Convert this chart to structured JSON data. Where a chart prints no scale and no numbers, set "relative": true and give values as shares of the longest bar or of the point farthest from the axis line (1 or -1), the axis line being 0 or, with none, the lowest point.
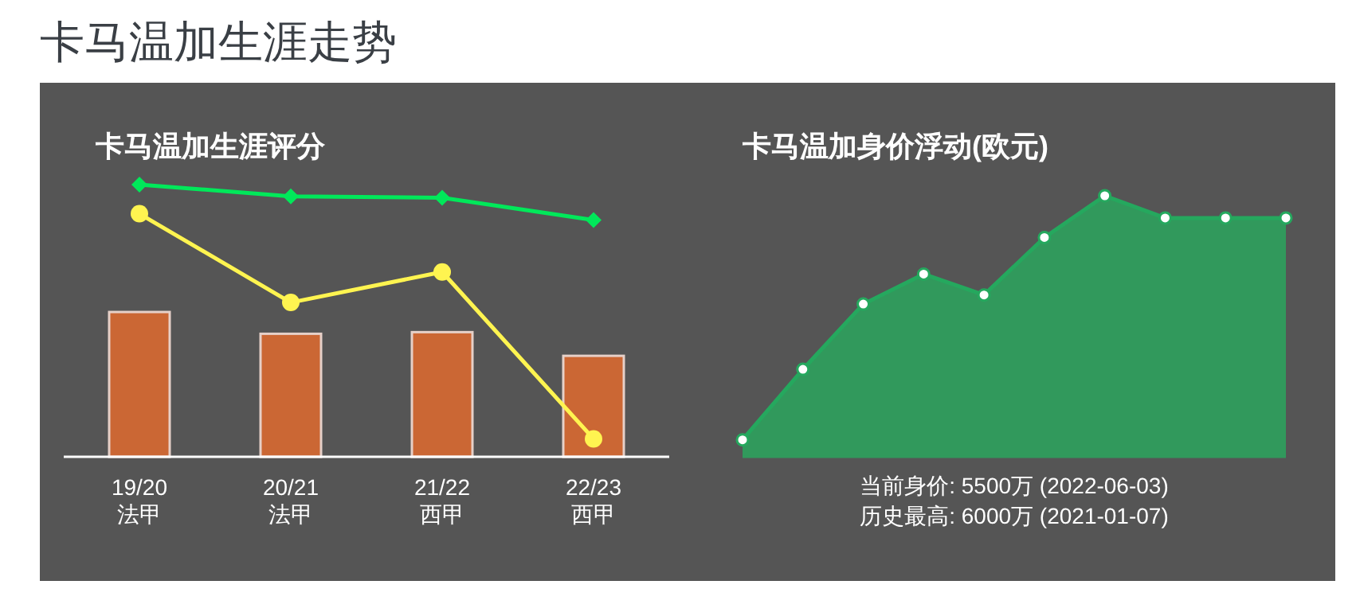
{
  "chart_data": [
    {
      "type": "bar",
      "title": "卡马温加生涯走势",
      "subtitle": "卡马温加生涯评分",
      "relative": true,
      "categories": [
        "19/20\n法甲",
        "20/21\n法甲",
        "21/22\n西甲",
        "22/23\n西甲"
      ],
      "series": [
        {
          "type": "bar",
          "color": "#cb6734",
          "values": [
            0.532,
            0.452,
            0.458,
            0.371
          ]
        },
        {
          "type": "line",
          "color": "#00e85a",
          "marker": "diamond",
          "values": [
            1,
            0.957,
            0.952,
            0.87
          ]
        },
        {
          "type": "line",
          "color": "#fff450",
          "marker": "circle",
          "values": [
            0.893,
            0.567,
            0.679,
            0.066
          ]
        }
      ]
    },
    {
      "type": "area",
      "title": "卡马温加身价浮动(欧元)",
      "relative": true,
      "marker": "circle",
      "categories": [
        null,
        null,
        null,
        null,
        null,
        null,
        null,
        null,
        null,
        null
      ],
      "series": [
        {
          "color": "#31995c",
          "values": [
            0.065,
            0.335,
            0.585,
            0.7,
            0.62,
            0.84,
            1,
            0.915,
            0.915,
            0.915
          ]
        }
      ],
      "annotations": [
        "当前身价: 5500万 (2022-06-03)",
        "历史最高: 6000万 (2021-01-07)"
      ]
    }
  ]
}
